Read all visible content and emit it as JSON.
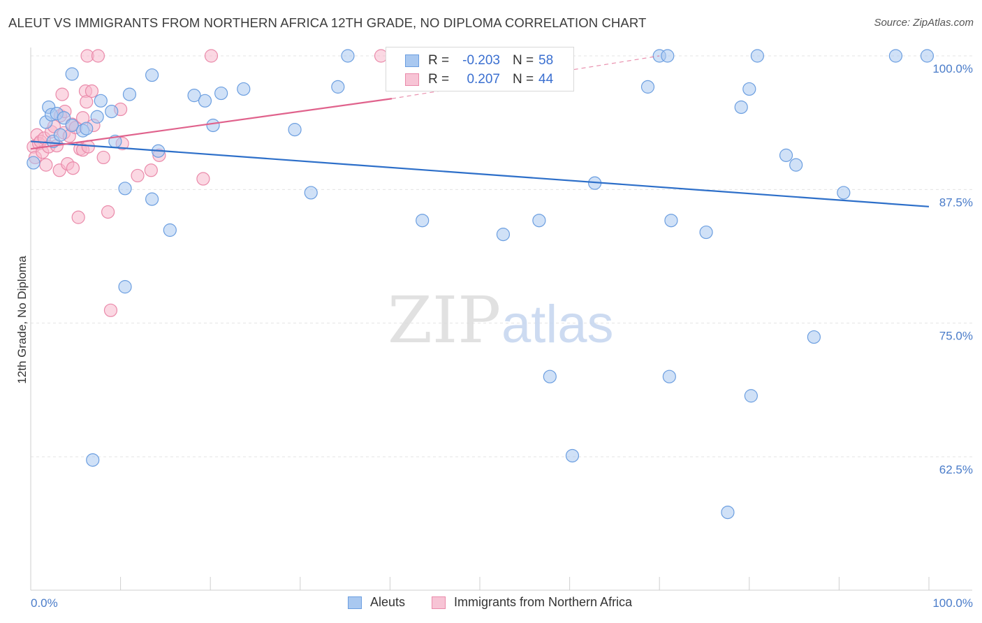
{
  "header": {
    "title": "ALEUT VS IMMIGRANTS FROM NORTHERN AFRICA 12TH GRADE, NO DIPLOMA CORRELATION CHART",
    "source": "Source: ZipAtlas.com"
  },
  "watermark": {
    "zip": "ZIP",
    "atlas": "atlas"
  },
  "legend": {
    "rows": [
      {
        "r_label": "R =",
        "r_value": "-0.203",
        "n_label": "N =",
        "n_value": "58"
      },
      {
        "r_label": "R =",
        "r_value": "0.207",
        "n_label": "N =",
        "n_value": "44"
      }
    ]
  },
  "bottom_legend": {
    "series1": "Aleuts",
    "series2": "Immigrants from Northern Africa"
  },
  "colors": {
    "aleut_fill": "#a9c8f0",
    "aleut_stroke": "#6b9ee0",
    "aleut_line": "#2d6fc9",
    "nafrica_fill": "#f7b8cc",
    "nafrica_stroke": "#ea8aaa",
    "nafrica_line": "#e0628c",
    "tick_text": "#4a7cc9",
    "grid": "#e3e3e3"
  },
  "chart_data": {
    "type": "scatter",
    "title": "ALEUT VS IMMIGRANTS FROM NORTHERN AFRICA 12TH GRADE, NO DIPLOMA CORRELATION CHART",
    "xlabel": "",
    "ylabel": "12th Grade, No Diploma",
    "xlim": [
      0,
      100
    ],
    "ylim": [
      50,
      101.2
    ],
    "x_tick_labels": [
      "0.0%",
      "100.0%"
    ],
    "y_ticks": [
      100,
      87.5,
      75,
      62.5
    ],
    "y_tick_labels": [
      "100.0%",
      "87.5%",
      "75.0%",
      "62.5%"
    ],
    "grid": true,
    "legend_placement": "top-center",
    "series": [
      {
        "name": "Aleuts",
        "r": -0.203,
        "n": 58,
        "trend": {
          "x": [
            0,
            100
          ],
          "y": [
            92.0,
            85.9
          ]
        },
        "points": [
          [
            0.3,
            90.0
          ],
          [
            1.7,
            93.8
          ],
          [
            2.0,
            95.2
          ],
          [
            2.3,
            94.5
          ],
          [
            2.5,
            92.0
          ],
          [
            2.9,
            94.6
          ],
          [
            3.3,
            92.6
          ],
          [
            3.7,
            94.2
          ],
          [
            4.6,
            98.3
          ],
          [
            4.6,
            93.5
          ],
          [
            5.8,
            93.0
          ],
          [
            6.2,
            93.2
          ],
          [
            6.9,
            62.2
          ],
          [
            7.4,
            94.3
          ],
          [
            7.8,
            95.8
          ],
          [
            9.0,
            94.8
          ],
          [
            9.4,
            92.0
          ],
          [
            10.5,
            87.6
          ],
          [
            10.5,
            78.4
          ],
          [
            11.0,
            96.4
          ],
          [
            13.5,
            86.6
          ],
          [
            13.5,
            98.2
          ],
          [
            14.2,
            91.1
          ],
          [
            15.5,
            83.7
          ],
          [
            18.2,
            96.3
          ],
          [
            19.4,
            95.8
          ],
          [
            20.3,
            93.5
          ],
          [
            21.2,
            96.5
          ],
          [
            23.7,
            96.9
          ],
          [
            29.4,
            93.1
          ],
          [
            31.2,
            87.2
          ],
          [
            34.2,
            97.1
          ],
          [
            35.3,
            100.0
          ],
          [
            43.6,
            84.6
          ],
          [
            47.5,
            100.0
          ],
          [
            52.6,
            83.3
          ],
          [
            54.6,
            100.0
          ],
          [
            56.6,
            84.6
          ],
          [
            57.8,
            70.0
          ],
          [
            60.3,
            62.6
          ],
          [
            62.8,
            88.1
          ],
          [
            68.7,
            97.1
          ],
          [
            70.0,
            100.0
          ],
          [
            70.9,
            100.0
          ],
          [
            71.1,
            70.0
          ],
          [
            71.3,
            84.6
          ],
          [
            75.2,
            83.5
          ],
          [
            77.6,
            57.3
          ],
          [
            79.1,
            95.2
          ],
          [
            80.0,
            96.9
          ],
          [
            80.2,
            68.2
          ],
          [
            80.9,
            100.0
          ],
          [
            84.1,
            90.7
          ],
          [
            85.2,
            89.8
          ],
          [
            87.2,
            73.7
          ],
          [
            90.5,
            87.2
          ],
          [
            96.3,
            100.0
          ],
          [
            99.8,
            100.0
          ]
        ]
      },
      {
        "name": "Immigrants from Northern Africa",
        "r": 0.207,
        "n": 44,
        "trend": {
          "x": [
            0,
            40.2
          ],
          "y": [
            91.3,
            96.0
          ],
          "dashed_x": [
            40.2,
            70.0
          ],
          "dashed_y": [
            96.0,
            100.0
          ]
        },
        "points": [
          [
            0.3,
            91.5
          ],
          [
            0.5,
            90.5
          ],
          [
            0.7,
            92.6
          ],
          [
            0.9,
            91.8
          ],
          [
            1.1,
            92.0
          ],
          [
            1.3,
            91.0
          ],
          [
            1.5,
            92.3
          ],
          [
            1.7,
            89.8
          ],
          [
            2.0,
            91.5
          ],
          [
            2.3,
            92.9
          ],
          [
            2.6,
            93.4
          ],
          [
            2.9,
            91.6
          ],
          [
            3.2,
            89.3
          ],
          [
            3.3,
            94.4
          ],
          [
            3.5,
            96.4
          ],
          [
            3.7,
            92.8
          ],
          [
            3.8,
            94.8
          ],
          [
            4.1,
            89.9
          ],
          [
            4.3,
            92.5
          ],
          [
            4.6,
            93.6
          ],
          [
            4.7,
            89.5
          ],
          [
            5.0,
            93.3
          ],
          [
            5.3,
            84.9
          ],
          [
            5.5,
            91.3
          ],
          [
            5.8,
            94.2
          ],
          [
            5.8,
            91.2
          ],
          [
            6.1,
            96.7
          ],
          [
            6.2,
            95.7
          ],
          [
            6.3,
            100.0
          ],
          [
            6.4,
            91.5
          ],
          [
            6.8,
            96.7
          ],
          [
            7.0,
            93.5
          ],
          [
            7.5,
            100.0
          ],
          [
            8.1,
            90.5
          ],
          [
            8.6,
            85.4
          ],
          [
            8.9,
            76.2
          ],
          [
            10.0,
            95.0
          ],
          [
            10.2,
            91.8
          ],
          [
            11.9,
            88.8
          ],
          [
            13.4,
            89.3
          ],
          [
            14.3,
            90.7
          ],
          [
            19.2,
            88.5
          ],
          [
            20.1,
            100.0
          ],
          [
            39.0,
            100.0
          ]
        ]
      }
    ]
  }
}
